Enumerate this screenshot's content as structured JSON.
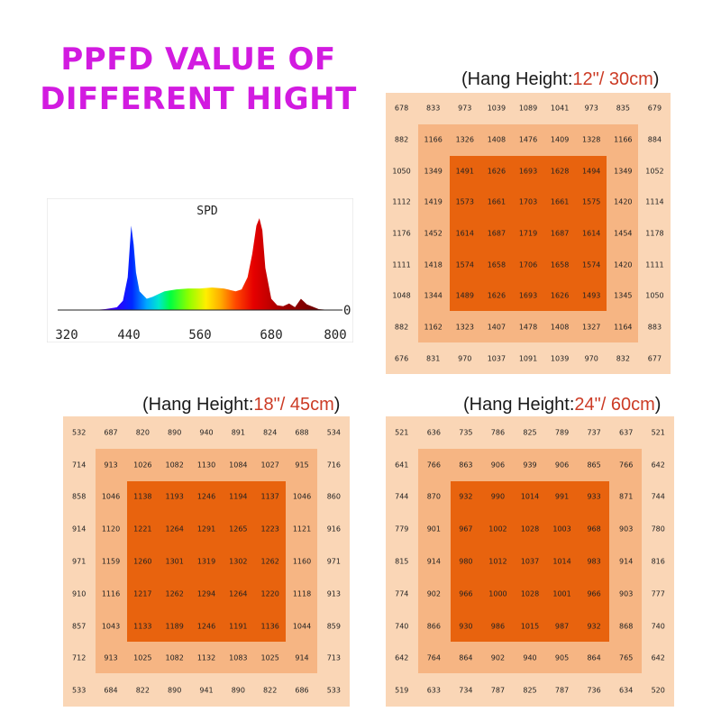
{
  "title": {
    "line1": "PPFD VALUE OF",
    "line2": "DIFFERENT HIGHT"
  },
  "colors": {
    "title": "#d21be0",
    "outer": "#fad6b6",
    "middle": "#f6b583",
    "center": "#e8630e",
    "hang_number": "#cc3b25"
  },
  "chart_data": [
    {
      "type": "line",
      "title": "SPD",
      "xlabel": "",
      "ylabel": "",
      "xlim": [
        320,
        800
      ],
      "ylim": [
        0,
        100
      ],
      "x_ticks": [
        "320",
        "440",
        "560",
        "680",
        "800"
      ],
      "y_ticks": [
        "0"
      ],
      "series": [
        {
          "x": [
            380,
            400,
            420,
            430,
            438,
            444,
            448,
            452,
            458,
            470,
            480,
            490,
            500,
            520,
            540,
            560,
            580,
            600,
            620,
            630,
            640,
            648,
            655,
            660,
            665,
            670,
            680,
            690,
            700,
            710,
            720,
            730,
            740,
            760,
            780,
            800
          ],
          "values": [
            0,
            1,
            3,
            10,
            35,
            90,
            70,
            40,
            20,
            12,
            14,
            17,
            20,
            22,
            23,
            23,
            24,
            23,
            20,
            22,
            35,
            60,
            90,
            98,
            85,
            45,
            12,
            5,
            4,
            7,
            3,
            12,
            6,
            1,
            0,
            0
          ]
        }
      ]
    },
    {
      "type": "table",
      "title": "(Hang Height:12\"/ 30cm)",
      "rows": [
        [
          678,
          833,
          973,
          1039,
          1089,
          1041,
          973,
          835,
          679
        ],
        [
          882,
          1166,
          1326,
          1408,
          1476,
          1409,
          1328,
          1166,
          884
        ],
        [
          1050,
          1349,
          1491,
          1626,
          1693,
          1628,
          1494,
          1349,
          1052
        ],
        [
          1112,
          1419,
          1573,
          1661,
          1703,
          1661,
          1575,
          1420,
          1114
        ],
        [
          1176,
          1452,
          1614,
          1687,
          1719,
          1687,
          1614,
          1454,
          1178
        ],
        [
          1111,
          1418,
          1574,
          1658,
          1706,
          1658,
          1574,
          1420,
          1111
        ],
        [
          1048,
          1344,
          1489,
          1626,
          1693,
          1626,
          1493,
          1345,
          1050
        ],
        [
          882,
          1162,
          1323,
          1407,
          1478,
          1408,
          1327,
          1164,
          883
        ],
        [
          676,
          831,
          970,
          1037,
          1091,
          1039,
          970,
          832,
          677
        ]
      ]
    },
    {
      "type": "table",
      "title": "(Hang Height:18\"/ 45cm)",
      "rows": [
        [
          532,
          687,
          820,
          890,
          940,
          891,
          824,
          688,
          534
        ],
        [
          714,
          913,
          1026,
          1082,
          1130,
          1084,
          1027,
          915,
          716
        ],
        [
          858,
          1046,
          1138,
          1193,
          1246,
          1194,
          1137,
          1046,
          860
        ],
        [
          914,
          1120,
          1221,
          1264,
          1291,
          1265,
          1223,
          1121,
          916
        ],
        [
          971,
          1159,
          1260,
          1301,
          1319,
          1302,
          1262,
          1160,
          971
        ],
        [
          910,
          1116,
          1217,
          1262,
          1294,
          1264,
          1220,
          1118,
          913
        ],
        [
          857,
          1043,
          1133,
          1189,
          1246,
          1191,
          1136,
          1044,
          859
        ],
        [
          712,
          913,
          1025,
          1082,
          1132,
          1083,
          1025,
          914,
          713
        ],
        [
          533,
          684,
          822,
          890,
          941,
          890,
          822,
          686,
          533
        ]
      ]
    },
    {
      "type": "table",
      "title": "(Hang Height:24\"/ 60cm)",
      "rows": [
        [
          521,
          636,
          735,
          786,
          825,
          789,
          737,
          637,
          521
        ],
        [
          641,
          766,
          863,
          906,
          939,
          906,
          865,
          766,
          642
        ],
        [
          744,
          870,
          932,
          990,
          1014,
          991,
          933,
          871,
          744
        ],
        [
          779,
          901,
          967,
          1002,
          1028,
          1003,
          968,
          903,
          780
        ],
        [
          815,
          914,
          980,
          1012,
          1037,
          1014,
          983,
          914,
          816
        ],
        [
          774,
          902,
          966,
          1000,
          1028,
          1001,
          966,
          903,
          777
        ],
        [
          740,
          866,
          930,
          986,
          1015,
          987,
          932,
          868,
          740
        ],
        [
          642,
          764,
          864,
          902,
          940,
          905,
          864,
          765,
          642
        ],
        [
          519,
          633,
          734,
          787,
          825,
          787,
          736,
          634,
          520
        ]
      ]
    }
  ],
  "hang_labels": [
    {
      "prefix": "(Hang Height:",
      "number": "12\"/ 30cm",
      "suffix": ")"
    },
    {
      "prefix": "(Hang Height:",
      "number": "18\"/ 45cm",
      "suffix": ")"
    },
    {
      "prefix": "(Hang Height:",
      "number": "24\"/ 60cm",
      "suffix": ")"
    }
  ]
}
